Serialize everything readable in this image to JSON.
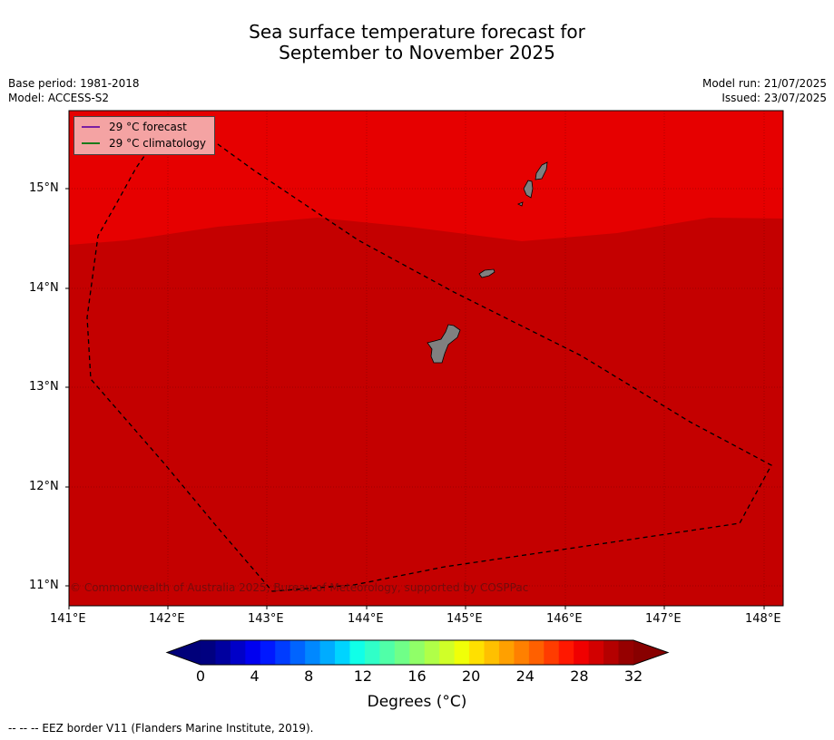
{
  "title": {
    "line1": "Sea surface temperature forecast for",
    "line2": "September to November 2025"
  },
  "meta_left": {
    "base_period": "Base period: 1981-2018",
    "model": "Model: ACCESS-S2"
  },
  "meta_right": {
    "model_run": "Model run: 21/07/2025",
    "issued": "Issued: 23/07/2025"
  },
  "legend": {
    "forecast_label": "29 °C  forecast",
    "forecast_color": "#7b1fa2",
    "climatology_label": "29 °C  climatology",
    "climatology_color": "#1b7a1b"
  },
  "map": {
    "lon_ticks": [
      "141°E",
      "142°E",
      "143°E",
      "144°E",
      "145°E",
      "146°E",
      "147°E",
      "148°E"
    ],
    "lat_ticks": [
      "15°N",
      "14°N",
      "13°N",
      "12°N",
      "11°N"
    ],
    "colors": {
      "warm_zone": "#e60000",
      "hot_zone": "#c40000",
      "land": "#808080",
      "eez_border": "#000000"
    },
    "copyright": "© Commonwealth of Australia 2025, Bureau of Meteorology, supported by COSPPac"
  },
  "colorbar": {
    "tick_labels": [
      "0",
      "4",
      "8",
      "12",
      "16",
      "20",
      "24",
      "28",
      "32"
    ],
    "label": "Degrees (°C)",
    "colors": [
      "#000080",
      "#00009f",
      "#0000c8",
      "#0000f0",
      "#0018ff",
      "#003cff",
      "#0064ff",
      "#0088ff",
      "#00acff",
      "#00d4ff",
      "#10ffe8",
      "#30ffc8",
      "#50ffa8",
      "#70ff88",
      "#90ff68",
      "#b0ff48",
      "#d0ff28",
      "#f0ff08",
      "#ffe000",
      "#ffc000",
      "#ffa000",
      "#ff8000",
      "#ff6000",
      "#ff3c00",
      "#ff1800",
      "#f00000",
      "#d20000",
      "#b40000",
      "#960000"
    ],
    "under_color": "#00007a",
    "over_color": "#880000"
  },
  "footer": "--  --  -- EEZ border V11 (Flanders Marine Institute, 2019)."
}
